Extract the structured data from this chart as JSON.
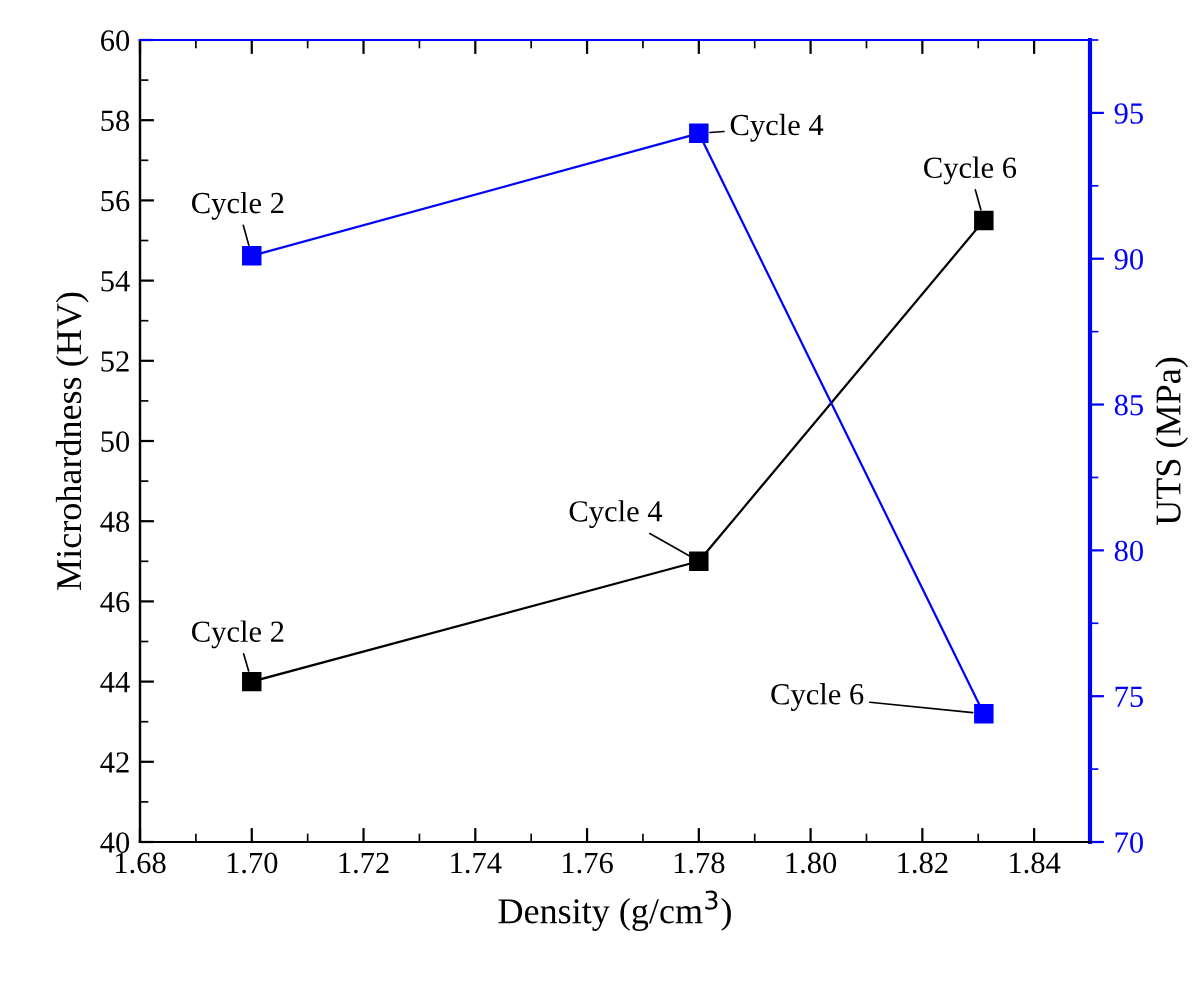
{
  "chart_data": {
    "type": "line",
    "xlabel": "Density (g/cm$^{3}$)",
    "ylabel": "Microhardness (HV)",
    "y2label": "UTS (MPa)",
    "x": [
      1.7,
      1.78,
      1.831
    ],
    "series": [
      {
        "color": "#000000",
        "values": [
          44,
          47,
          55.5
        ],
        "value_labels": [
          "Cycle 2",
          "Cycle 4",
          "Cycle 6"
        ]
      },
      {
        "color": "#0000ff",
        "axis": "y2",
        "values": [
          90.1,
          94.3,
          74.4
        ],
        "value_labels": [
          "Cycle 2",
          "Cycle 4",
          "Cycle 6"
        ]
      }
    ],
    "xlim": [
      1.68,
      1.85
    ],
    "xticks": [
      {
        "value": 1.68,
        "label": "1.68"
      },
      {
        "value": 1.7,
        "label": "1.70"
      },
      1.72,
      1.74,
      1.76,
      1.78,
      {
        "value": 1.8,
        "label": "1.80"
      },
      1.82,
      1.84
    ],
    "ylim": [
      40,
      60
    ],
    "yticks": [
      40,
      42,
      44,
      46,
      48,
      50,
      52,
      54,
      56,
      58,
      60
    ],
    "y2lim": [
      70,
      97.5
    ],
    "y2ticks": [
      70,
      75,
      80,
      85,
      90,
      95
    ],
    "marker": "square",
    "line_style": "solid",
    "grid": false,
    "legend": false
  }
}
